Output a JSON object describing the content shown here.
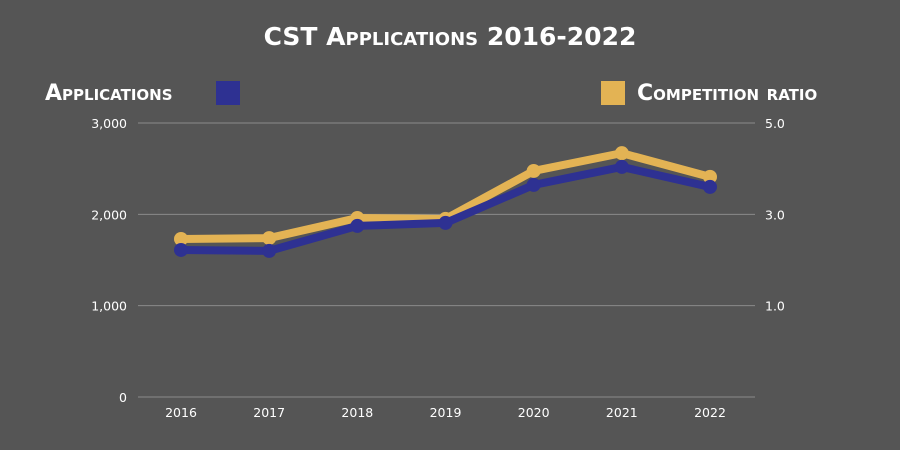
{
  "chart_data": {
    "type": "line",
    "title": "CST Applications 2016-2022",
    "categories": [
      "2016",
      "2017",
      "2018",
      "2019",
      "2020",
      "2021",
      "2022"
    ],
    "series": [
      {
        "name": "Applications",
        "axis": "left",
        "color": "#2e3192",
        "values": [
          1610,
          1600,
          1873,
          1906,
          2322,
          2519,
          2300
        ]
      },
      {
        "name": "Competition ratio",
        "axis": "right",
        "color": "#e3b354",
        "values": [
          2.46,
          2.48,
          2.92,
          2.9,
          3.95,
          4.34,
          3.82
        ]
      }
    ],
    "left_axis": {
      "ylim": [
        0,
        3000
      ],
      "ticks": [
        "0",
        "1,000",
        "2,000",
        "3,000"
      ]
    },
    "right_axis": {
      "ylim": [
        -1,
        5
      ],
      "ticks": [
        "1.0",
        "3.0",
        "5.0"
      ]
    },
    "grid": true,
    "legend": "top-left and top-right"
  }
}
